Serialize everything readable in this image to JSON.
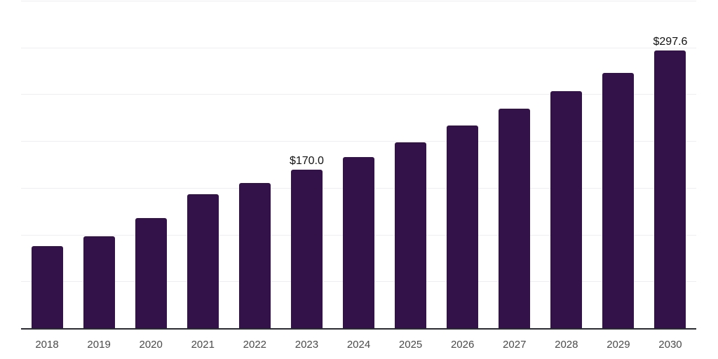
{
  "chart_data": {
    "type": "bar",
    "title": "",
    "xlabel": "",
    "ylabel": "",
    "categories": [
      "2018",
      "2019",
      "2020",
      "2021",
      "2022",
      "2023",
      "2024",
      "2025",
      "2026",
      "2027",
      "2028",
      "2029",
      "2030"
    ],
    "values": [
      88.5,
      99.3,
      118.3,
      143.6,
      156.2,
      170.0,
      183.8,
      199.4,
      217.2,
      235.1,
      254.4,
      273.8,
      297.6
    ],
    "data_labels": [
      "",
      "",
      "",
      "",
      "",
      "$170.0",
      "",
      "",
      "",
      "",
      "",
      "",
      "$297.6"
    ],
    "ylim": [
      0,
      350
    ],
    "gridline_step": 50,
    "grid": "horizontal-only",
    "yaxis_tick_labels": "none",
    "legend": "none",
    "colors": {
      "bar": "#331149",
      "gridline": "#ededf2",
      "axis_line": "#2b2b33",
      "xaxis_label": "#4a4a4a",
      "value_label": "#111111",
      "background": "#ffffff"
    }
  }
}
